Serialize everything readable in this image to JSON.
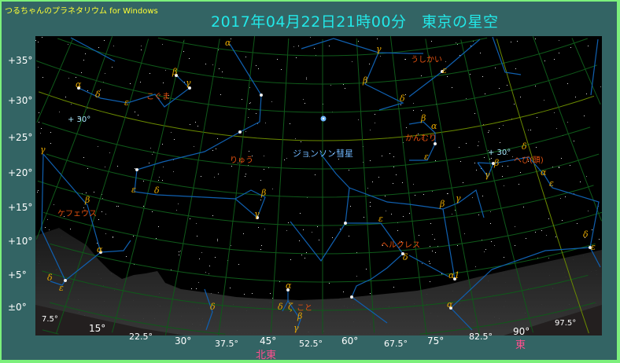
{
  "app_name": "つるちゃんのプラネタリウム for Windows",
  "title": "2017年04月22日21時00分　東京の星空",
  "colors": {
    "background": "#336464",
    "border": "#7cf07c",
    "title": "#22e8e8",
    "app_name": "#ffff33",
    "grid": "#0f5a1a",
    "grid_highlight": "#6a8a00",
    "constellation_line": "#1060b0",
    "greek": "#e6a800",
    "constellation_name": "#e65210",
    "comet": "#70b8ff",
    "direction": "#ff4f8f"
  },
  "declination_labels": [
    "+35°",
    "+30°",
    "+25°",
    "+20°",
    "+15°",
    "+10°",
    "+5°",
    "±0°"
  ],
  "azimuth_labels": [
    "7.5°",
    "15°",
    "22.5°",
    "30°",
    "37.5°",
    "45°",
    "52.5°",
    "60°",
    "67.5°",
    "75°",
    "82.5°",
    "90°",
    "97.5°"
  ],
  "directions": {
    "northeast": "北東",
    "east": "東"
  },
  "grid_labels": [
    "+ 30°",
    "+ 30°"
  ],
  "comet": {
    "name": "ジョンソン彗星",
    "icon": "comet-icon"
  },
  "constellations": [
    "こぐま",
    "ケフェウス",
    "りゅう",
    "うしかい",
    "かんむり",
    "へび(頭)",
    "ヘルクレス",
    "こと"
  ],
  "star_labels": [
    "α",
    "δ",
    "ε",
    "β",
    "γ",
    "γ",
    "β",
    "α",
    "δ",
    "ε",
    "ε",
    "δ",
    "α",
    "β",
    "γ",
    "γ",
    "β",
    "δ",
    "ε",
    "β",
    "α",
    "ε",
    "β",
    "γ",
    "δ",
    "α",
    "ε",
    "β",
    "γ",
    "ε",
    "δ",
    "α1",
    "α",
    "δ",
    "ε",
    "α",
    "δ",
    "ζ",
    "β",
    "γ",
    "δ"
  ]
}
